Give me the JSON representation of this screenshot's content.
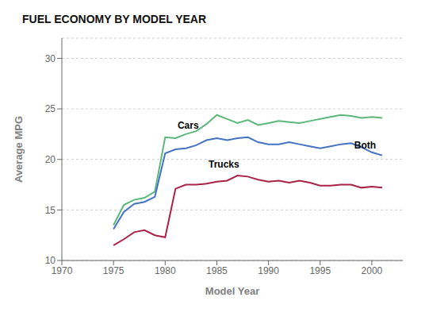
{
  "chart_data": {
    "type": "line",
    "title": "FUEL ECONOMY BY MODEL YEAR",
    "x_label": "Model Year",
    "y_label": "Average MPG",
    "x": [
      1975,
      1976,
      1977,
      1978,
      1979,
      1980,
      1981,
      1982,
      1983,
      1984,
      1985,
      1986,
      1987,
      1988,
      1989,
      1990,
      1991,
      1992,
      1993,
      1994,
      1995,
      1996,
      1997,
      1998,
      1999,
      2000,
      2001
    ],
    "series": [
      {
        "name": "Cars",
        "color": "#5cb87a",
        "values": [
          13.5,
          15.5,
          16.0,
          16.2,
          16.8,
          22.2,
          22.1,
          22.5,
          22.8,
          23.5,
          24.4,
          24.0,
          23.6,
          23.9,
          23.4,
          23.6,
          23.8,
          23.7,
          23.6,
          23.8,
          24.0,
          24.2,
          24.4,
          24.3,
          24.1,
          24.2,
          24.1
        ]
      },
      {
        "name": "Both",
        "color": "#4472c4",
        "values": [
          13.1,
          14.8,
          15.6,
          15.8,
          16.3,
          20.6,
          21.0,
          21.1,
          21.4,
          21.9,
          22.1,
          21.9,
          22.1,
          22.2,
          21.7,
          21.5,
          21.5,
          21.7,
          21.5,
          21.3,
          21.1,
          21.3,
          21.5,
          21.6,
          21.2,
          20.7,
          20.4
        ]
      },
      {
        "name": "Trucks",
        "color": "#aa2244",
        "values": [
          11.5,
          12.1,
          12.8,
          13.0,
          12.5,
          12.3,
          17.1,
          17.5,
          17.5,
          17.6,
          17.8,
          17.9,
          18.4,
          18.3,
          18.0,
          17.8,
          17.9,
          17.7,
          17.9,
          17.7,
          17.4,
          17.4,
          17.5,
          17.5,
          17.2,
          17.3,
          17.2
        ]
      }
    ],
    "annotations": [
      {
        "text": "Cars",
        "x": 1981.2,
        "y": 22.9
      },
      {
        "text": "Trucks",
        "x": 1984.2,
        "y": 19.0
      },
      {
        "text": "Both",
        "x": 1998.3,
        "y": 20.9
      }
    ],
    "xlim": [
      1970,
      2003
    ],
    "ylim": [
      10,
      32
    ],
    "xticks": [
      1970,
      1975,
      1980,
      1985,
      1990,
      1995,
      2000
    ],
    "yticks": [
      10,
      15,
      20,
      25,
      30
    ],
    "grid": true
  }
}
